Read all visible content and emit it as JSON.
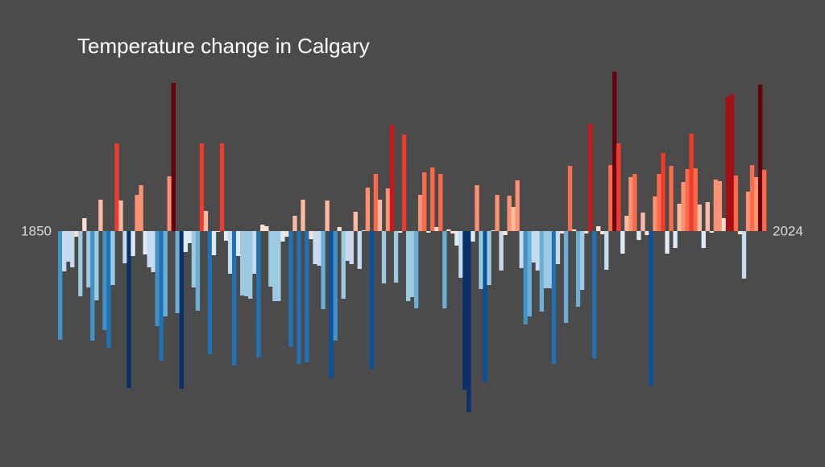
{
  "chart_data": {
    "type": "bar",
    "title": "Temperature change in Calgary",
    "xlim": [
      1850,
      2024
    ],
    "xticks": [
      1850,
      2024
    ],
    "ylim": [
      -2.5,
      2.5
    ],
    "color_range": [
      -2.2,
      2.0
    ],
    "colormap": [
      "#08306b",
      "#08519c",
      "#2171b5",
      "#4292c6",
      "#6baed6",
      "#9ecae1",
      "#c6dbef",
      "#deebf7",
      "#fee0d2",
      "#fcbba1",
      "#fc9272",
      "#fb6a4a",
      "#ef3b2c",
      "#cb181d",
      "#a50f15",
      "#67000d"
    ],
    "values": [
      -1.35,
      -0.5,
      -0.38,
      -0.45,
      -0.07,
      -0.81,
      0.16,
      -0.7,
      -1.36,
      -0.86,
      0.39,
      -1.23,
      -1.45,
      -0.67,
      1.09,
      0.38,
      -0.4,
      -1.95,
      -0.31,
      0.45,
      0.57,
      -0.29,
      -0.45,
      -0.51,
      -1.18,
      -1.61,
      -1.06,
      0.68,
      1.84,
      -1.02,
      -1.96,
      -0.26,
      -0.15,
      -0.7,
      -0.99,
      1.09,
      0.25,
      -1.53,
      -0.3,
      -0.01,
      1.09,
      -0.12,
      -0.53,
      -1.67,
      -0.31,
      -0.8,
      -0.81,
      -0.84,
      -0.53,
      -1.57,
      0.08,
      0.06,
      -0.69,
      -0.87,
      -0.87,
      -0.13,
      -0.07,
      -1.44,
      0.19,
      -1.65,
      0.39,
      -1.63,
      -0.1,
      -0.41,
      -0.43,
      -0.97,
      0.38,
      -1.83,
      -1.36,
      0.05,
      -0.84,
      -0.37,
      -0.41,
      0.24,
      -0.47,
      0.01,
      0.54,
      -1.71,
      0.71,
      0.39,
      -0.65,
      0.53,
      1.32,
      -0.64,
      -0.02,
      1.2,
      -0.87,
      -0.82,
      -0.96,
      0.45,
      0.73,
      -0.02,
      0.79,
      0.05,
      0.71,
      -0.96,
      0.02,
      -0.03,
      -0.18,
      -0.58,
      -1.97,
      -2.25,
      -0.13,
      0.57,
      -0.72,
      -1.87,
      -0.67,
      0.01,
      0.45,
      -0.49,
      -0.05,
      0.44,
      0.3,
      0.63,
      -0.46,
      -1.16,
      -1.06,
      -0.39,
      -0.49,
      -1.0,
      -0.71,
      -0.71,
      -1.65,
      -0.41,
      -0.03,
      -1.14,
      0.81,
      0.02,
      -0.94,
      -0.73,
      -0.03,
      1.33,
      -1.58,
      0.06,
      -0.04,
      -0.48,
      0.82,
      1.98,
      1.09,
      -0.28,
      0.19,
      0.67,
      0.71,
      -0.11,
      0.23,
      -0.05,
      -1.92,
      0.43,
      0.71,
      0.97,
      -0.28,
      0.81,
      -0.21,
      0.34,
      0.61,
      0.77,
      1.21,
      0.78,
      0.33,
      -0.21,
      0.36,
      -0.02,
      0.64,
      0.62,
      0.16,
      1.67,
      1.7,
      0.69,
      -0.04,
      -0.59,
      0.49,
      0.82,
      0.67,
      1.82,
      0.76
    ]
  }
}
